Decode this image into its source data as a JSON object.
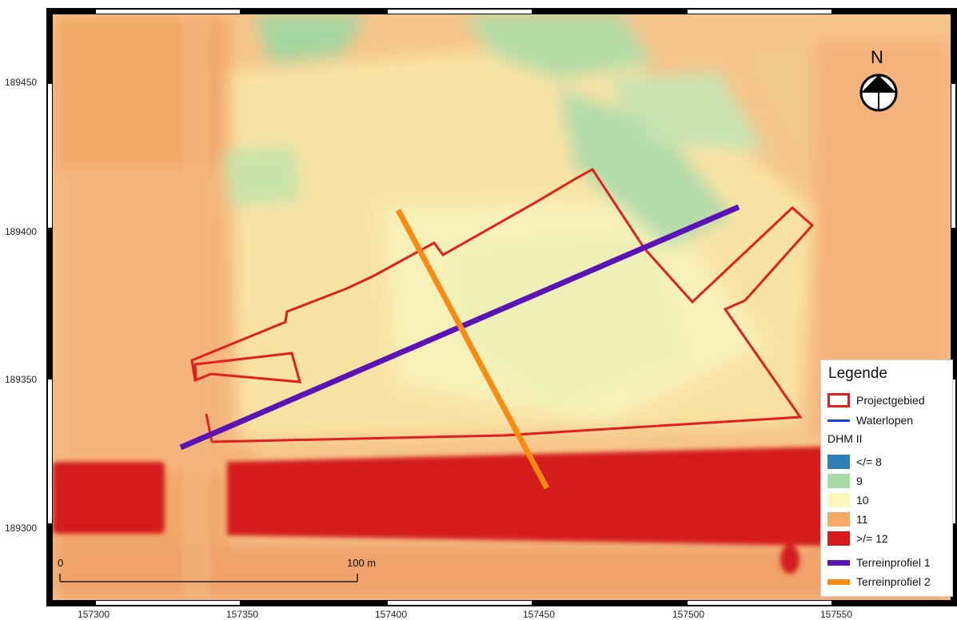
{
  "map": {
    "y_ticks": [
      "189450",
      "189400",
      "189350",
      "189300"
    ],
    "x_ticks": [
      "157300",
      "157350",
      "157400",
      "157450",
      "157500",
      "157550"
    ],
    "north_label": "N",
    "scale": {
      "start": "0",
      "end": "100 m"
    }
  },
  "legend": {
    "title": "Legende",
    "project_label": "Projectgebied",
    "waterways_label": "Waterlopen",
    "dem_title": "DHM II",
    "classes": [
      {
        "label": "</= 8",
        "color": "#2c7fb8"
      },
      {
        "label": "9",
        "color": "#a6d9a4"
      },
      {
        "label": "10",
        "color": "#fbf7bd"
      },
      {
        "label": "11",
        "color": "#f5a964"
      },
      {
        "label": ">/= 12",
        "color": "#d7191c"
      }
    ],
    "profile1_label": "Terreinprofiel 1",
    "profile2_label": "Terreinprofiel 2",
    "project_color": "#e0201e",
    "waterways_color": "#1a3be8",
    "profile1_color": "#5a13b5",
    "profile2_color": "#f98b12"
  }
}
